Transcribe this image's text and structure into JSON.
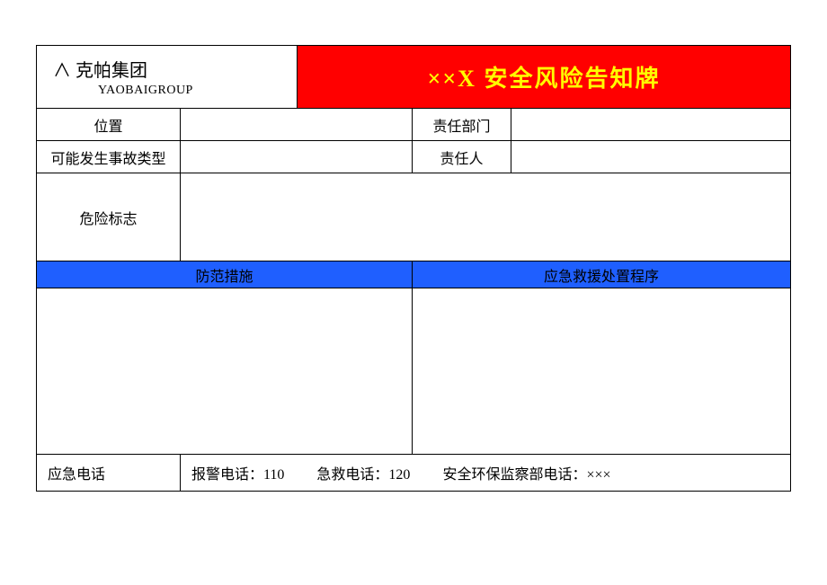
{
  "colors": {
    "header_bg": "#ff0000",
    "header_text": "#ffff00",
    "section_bg": "#1f5fff",
    "border": "#000000",
    "page_bg": "#ffffff"
  },
  "header": {
    "logo_prefix": "∧",
    "logo_cn": "克帕集团",
    "logo_en": "YAOBAIGROUP",
    "title": "××X 安全风险告知牌"
  },
  "rows": {
    "location_label": "位置",
    "location_value": "",
    "dept_label": "责任部门",
    "dept_value": "",
    "accident_label": "可能发生事故类型",
    "accident_value": "",
    "person_label": "责任人",
    "person_value": "",
    "hazard_label": "危险标志",
    "hazard_value": ""
  },
  "sections": {
    "prevention_label": "防范措施",
    "prevention_content": "",
    "emergency_label": "应急救援处置程序",
    "emergency_content": ""
  },
  "footer": {
    "label": "应急电话",
    "alarm": "报警电话：110",
    "first_aid": "急救电话：120",
    "safety_dept": "安全环保监察部电话：×××"
  }
}
